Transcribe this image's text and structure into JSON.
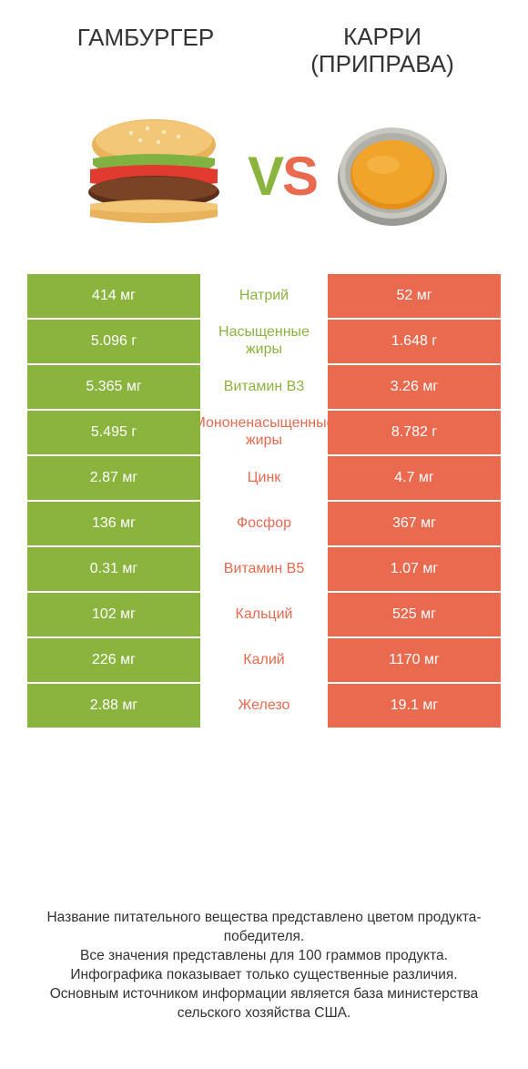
{
  "colors": {
    "green": "#8bb43f",
    "orange": "#e96a4f",
    "vs_v": "#8bb43f",
    "vs_s": "#e96a4f"
  },
  "titles": {
    "left": "ГАМБУРГЕР",
    "right_line1": "КАРРИ",
    "right_line2": "(ПРИПРАВА)"
  },
  "vs": {
    "v": "V",
    "s": "S"
  },
  "rows": [
    {
      "left": "414 мг",
      "label": "Натрий",
      "right": "52 мг",
      "winner": "left"
    },
    {
      "left": "5.096 г",
      "label": "Насыщенные жиры",
      "right": "1.648 г",
      "winner": "left"
    },
    {
      "left": "5.365 мг",
      "label": "Витамин B3",
      "right": "3.26 мг",
      "winner": "left"
    },
    {
      "left": "5.495 г",
      "label": "Мононенасыщенные жиры",
      "right": "8.782 г",
      "winner": "right"
    },
    {
      "left": "2.87 мг",
      "label": "Цинк",
      "right": "4.7 мг",
      "winner": "right"
    },
    {
      "left": "136 мг",
      "label": "Фосфор",
      "right": "367 мг",
      "winner": "right"
    },
    {
      "left": "0.31 мг",
      "label": "Витамин B5",
      "right": "1.07 мг",
      "winner": "right"
    },
    {
      "left": "102 мг",
      "label": "Кальций",
      "right": "525 мг",
      "winner": "right"
    },
    {
      "left": "226 мг",
      "label": "Калий",
      "right": "1170 мг",
      "winner": "right"
    },
    {
      "left": "2.88 мг",
      "label": "Железо",
      "right": "19.1 мг",
      "winner": "right"
    }
  ],
  "footer": {
    "line1": "Название питательного вещества представлено цветом продукта-победителя.",
    "line2": "Все значения представлены для 100 граммов продукта.",
    "line3": "Инфографика показывает только существенные различия.",
    "line4": "Основным источником информации является база министерства сельского хозяйства США."
  }
}
